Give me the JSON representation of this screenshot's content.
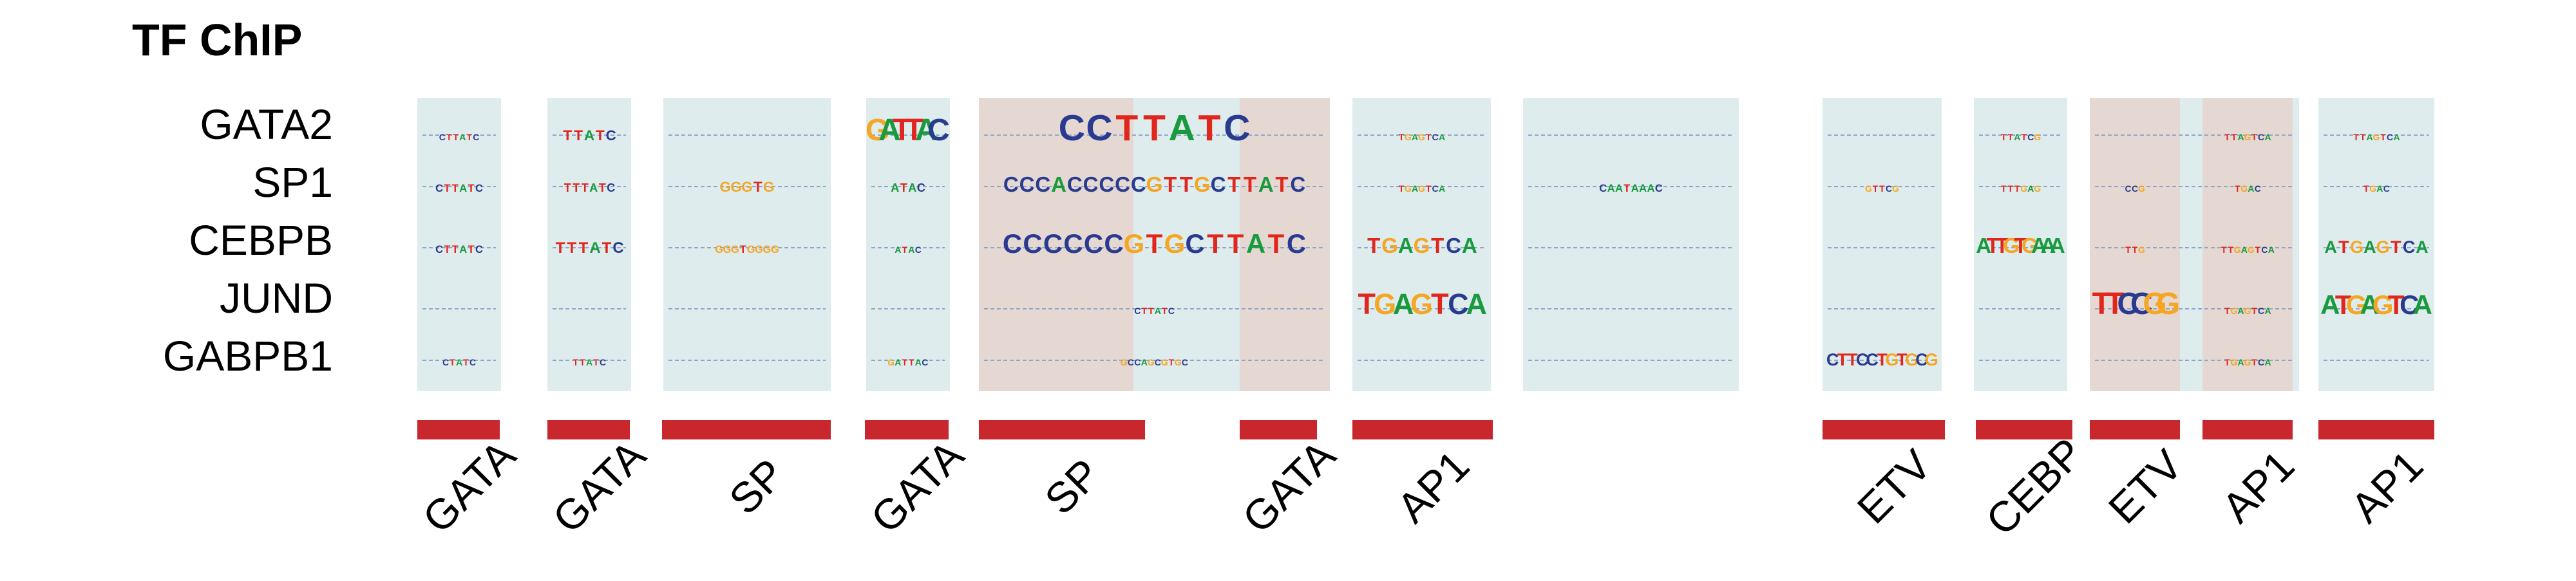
{
  "title": "TF ChIP",
  "tf_labels": [
    "GATA2",
    "SP1",
    "CEBPB",
    "JUND",
    "GABPB1"
  ],
  "colors": {
    "panel_blue": "#deeced",
    "panel_tan": "#e5d8d2",
    "bar_red": "#c8272e",
    "base_A": "#1a9a3e",
    "base_C": "#2a3b8f",
    "base_G": "#f5a623",
    "base_T": "#e0261d"
  },
  "motif_families": [
    "GATA",
    "GATA",
    "SP",
    "GATA",
    "SP",
    "GATA",
    "AP1",
    "ETV",
    "CEBP",
    "ETV",
    "AP1",
    "AP1"
  ],
  "logo_rows": {
    "GATA2": [
      {
        "panel": 0,
        "text": "CTTATC",
        "scale": 0.3
      },
      {
        "panel": 1,
        "text": "TTATC",
        "scale": 0.75
      },
      {
        "panel": 2,
        "text": "",
        "scale": 0.1
      },
      {
        "panel": 3,
        "text": "GATTAC",
        "scale": 1.6
      },
      {
        "panel": 4,
        "text": "CCTTATC",
        "scale": 1.9
      },
      {
        "panel": 6,
        "text": "TGAGTCA",
        "scale": 0.3
      },
      {
        "panel": 9,
        "text": "TTATCG",
        "scale": 0.25
      },
      {
        "panel": 11,
        "text": "TTAGTCA",
        "scale": 0.3
      },
      {
        "panel": 12,
        "text": "TTAGTCA",
        "scale": 0.3
      }
    ],
    "SP1": [
      {
        "panel": 0,
        "text": "CTTATC",
        "scale": 0.55
      },
      {
        "panel": 1,
        "text": "TTTATC",
        "scale": 0.6
      },
      {
        "panel": 2,
        "text": "GGGTG",
        "scale": 0.75
      },
      {
        "panel": 3,
        "text": "ATAC",
        "scale": 0.6
      },
      {
        "panel": 4,
        "text": "CCCACCCCCGTTGCTTATC",
        "scale": 1.1
      },
      {
        "panel": 6,
        "text": "TGAGTCA",
        "scale": 0.45
      },
      {
        "panel": 7,
        "text": "CAATAAAC",
        "scale": 0.55
      },
      {
        "panel": 8,
        "text": "GTTCG",
        "scale": 0.25
      },
      {
        "panel": 9,
        "text": "TTTGAG",
        "scale": 0.2
      },
      {
        "panel": 10,
        "text": "CCG",
        "scale": 0.25
      },
      {
        "panel": 11,
        "text": "TGAC",
        "scale": 0.2
      },
      {
        "panel": 12,
        "text": "TGAC",
        "scale": 0.2
      }
    ],
    "CEBPB": [
      {
        "panel": 0,
        "text": "CTTATC",
        "scale": 0.55
      },
      {
        "panel": 1,
        "text": "TTTATC",
        "scale": 0.8
      },
      {
        "panel": 2,
        "text": "GGGTGGGG",
        "scale": 0.55
      },
      {
        "panel": 3,
        "text": "ATAC",
        "scale": 0.3
      },
      {
        "panel": 4,
        "text": "CCCCCCGTGCTTATC",
        "scale": 1.4
      },
      {
        "panel": 6,
        "text": "TGAGTCA",
        "scale": 1.1
      },
      {
        "panel": 9,
        "text": "ATTGTGAAA",
        "scale": 1.1
      },
      {
        "panel": 10,
        "text": "TTG",
        "scale": 0.2
      },
      {
        "panel": 11,
        "text": "TTGAGTCA",
        "scale": 0.3
      },
      {
        "panel": 12,
        "text": "ATGAGTCA",
        "scale": 0.9
      }
    ],
    "JUND": [
      {
        "panel": 4,
        "text": "CTTATC",
        "scale": 0.4
      },
      {
        "panel": 6,
        "text": "TGAGTCA",
        "scale": 1.5
      },
      {
        "panel": 10,
        "text": "TTCCGG",
        "scale": 1.6
      },
      {
        "panel": 11,
        "text": "TGAGTCA",
        "scale": 0.35
      },
      {
        "panel": 12,
        "text": "ATGAGTCA",
        "scale": 1.4
      }
    ],
    "GABPB1": [
      {
        "panel": 0,
        "text": "CTATC",
        "scale": 0.2
      },
      {
        "panel": 1,
        "text": "TTATC",
        "scale": 0.2
      },
      {
        "panel": 3,
        "text": "GATTAC",
        "scale": 0.25
      },
      {
        "panel": 4,
        "text": "GCCAGCGTGC",
        "scale": 0.3
      },
      {
        "panel": 8,
        "text": "CTTCCTGTGCG",
        "scale": 0.9
      },
      {
        "panel": 11,
        "text": "TGAGTCA",
        "scale": 0.35
      }
    ]
  }
}
